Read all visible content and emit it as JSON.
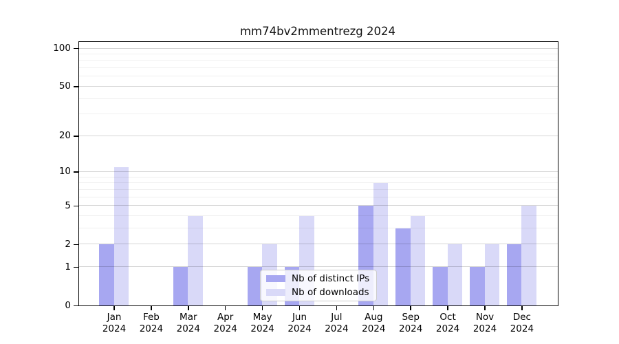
{
  "chart_data": {
    "type": "bar",
    "title": "mm74bv2mmentrezg 2024",
    "xlabel": "",
    "ylabel": "",
    "scale": "log1p",
    "grid": true,
    "legend_position": "lower center",
    "categories": [
      "Jan",
      "Feb",
      "Mar",
      "Apr",
      "May",
      "Jun",
      "Jul",
      "Aug",
      "Sep",
      "Oct",
      "Nov",
      "Dec"
    ],
    "year": "2024",
    "series": [
      {
        "name": "Nb of distinct IPs",
        "color": "#a7a7f1",
        "values": [
          2,
          0,
          1,
          0,
          1,
          1,
          0,
          5,
          3,
          1,
          1,
          2
        ]
      },
      {
        "name": "Nb of downloads",
        "color": "#d9d9f8",
        "values": [
          11,
          0,
          4,
          0,
          2,
          4,
          0,
          8,
          4,
          2,
          2,
          5
        ]
      }
    ],
    "y_ticks": [
      {
        "value": 0,
        "label": "0"
      },
      {
        "value": 1,
        "label": "1"
      },
      {
        "value": 2,
        "label": "2"
      },
      {
        "value": 5,
        "label": "5"
      },
      {
        "value": 10,
        "label": "10"
      },
      {
        "value": 20,
        "label": "20"
      },
      {
        "value": 50,
        "label": "50"
      },
      {
        "value": 100,
        "label": "100"
      }
    ],
    "y_minor_gridlines": [
      3,
      4,
      6,
      7,
      8,
      9,
      30,
      40,
      60,
      70,
      80,
      90
    ],
    "ylim": [
      0,
      112
    ]
  }
}
